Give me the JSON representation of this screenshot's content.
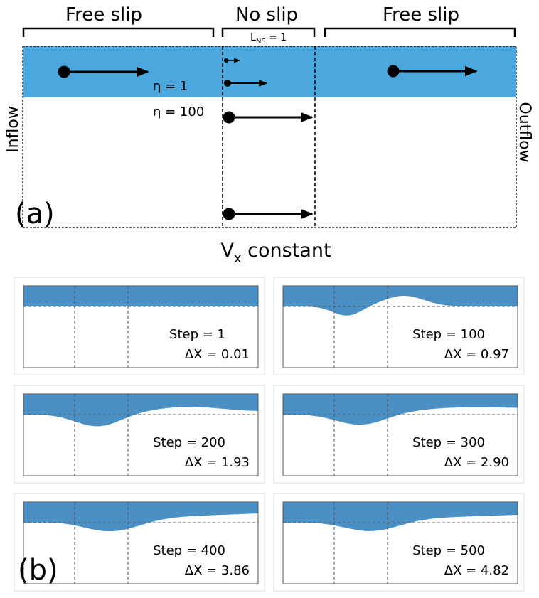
{
  "panel_a": {
    "top_labels": [
      "Free slip",
      "No slip",
      "Free slip"
    ],
    "lns": {
      "main": "L",
      "sub": "NS",
      "rest": " = 1"
    },
    "eta_top": "η = 1",
    "eta_bottom": "η = 100",
    "inflow": "Inflow",
    "outflow": "Outflow",
    "label": "(a)",
    "vx": {
      "main": "V",
      "sub": "x",
      "rest": " constant"
    }
  },
  "panel_b": {
    "label": "(b)",
    "plots": [
      {
        "step": "Step = 1",
        "dx": "ΔX = 0.01"
      },
      {
        "step": "Step = 100",
        "dx": "ΔX = 0.97"
      },
      {
        "step": "Step = 200",
        "dx": "ΔX = 1.93"
      },
      {
        "step": "Step = 300",
        "dx": "ΔX = 2.90"
      },
      {
        "step": "Step = 400",
        "dx": "ΔX = 3.86"
      },
      {
        "step": "Step = 500",
        "dx": "ΔX = 4.82"
      }
    ]
  }
}
